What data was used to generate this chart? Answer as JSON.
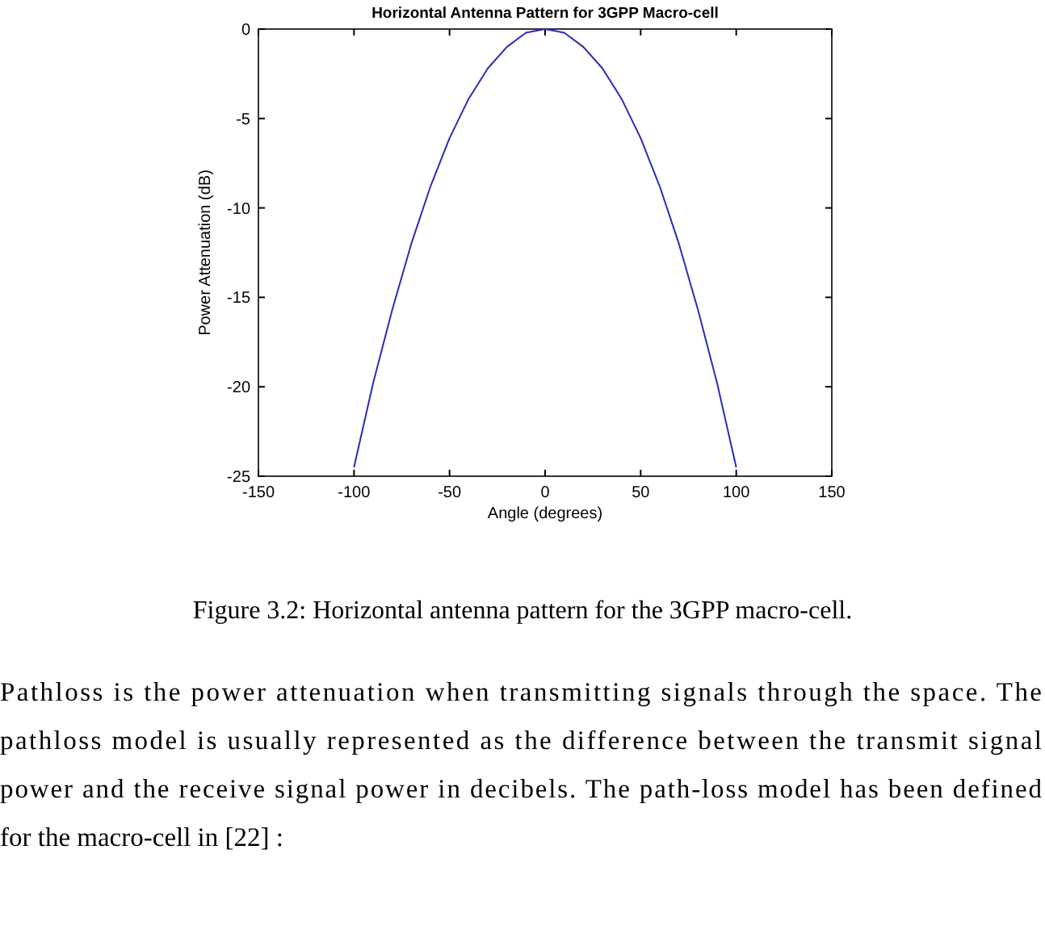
{
  "chart_data": {
    "type": "line",
    "title": "Horizontal Antenna Pattern for 3GPP Macro-cell",
    "xlabel": "Angle (degrees)",
    "ylabel": "Power Attenuation (dB)",
    "x": [
      -100,
      -90,
      -80,
      -70,
      -60,
      -50,
      -40,
      -30,
      -20,
      -10,
      0,
      10,
      20,
      30,
      40,
      50,
      60,
      70,
      80,
      90,
      100
    ],
    "series": [
      {
        "color": "#2b2bb8",
        "values": [
          -24.5,
          -19.8,
          -15.7,
          -12,
          -8.8,
          -6.1,
          -3.9,
          -2.2,
          -1,
          -0.2,
          0,
          -0.2,
          -1,
          -2.2,
          -3.9,
          -6.1,
          -8.8,
          -12,
          -15.7,
          -19.8,
          -24.5
        ]
      }
    ],
    "xlim": [
      -150,
      150
    ],
    "xticks": [
      -150,
      -100,
      -50,
      0,
      50,
      100,
      150
    ],
    "ylim": [
      -25,
      0
    ],
    "yticks": [
      -25,
      -20,
      -15,
      -10,
      -5,
      0
    ],
    "grid": false,
    "marker": "none",
    "line_style": "solid",
    "annotations": [
      "Figure 3.2: Horizontal antenna pattern for the 3GPP macro-cell.",
      "Pathloss is the power attenuation when transmitting signals through the space. The",
      "pathloss model is usually represented as the difference between the transmit signal",
      "power and the receive signal power in decibels. The path-loss model has been defined",
      "for the macro-cell in [22] :"
    ]
  }
}
